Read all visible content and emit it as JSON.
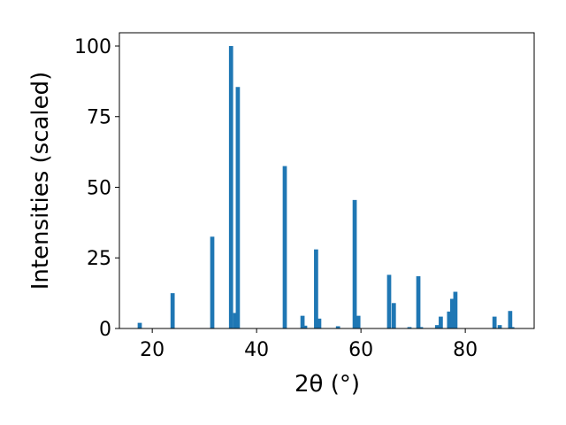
{
  "chart_data": {
    "type": "bar",
    "xlabel": "2θ (°)",
    "ylabel": "Intensities (scaled)",
    "x": [
      17.6,
      23.9,
      31.5,
      35.1,
      35.9,
      36.4,
      45.4,
      48.8,
      49.3,
      51.4,
      52.0,
      55.6,
      58.8,
      59.5,
      65.4,
      66.3,
      69.3,
      71.0,
      71.5,
      74.6,
      75.3,
      76.9,
      77.5,
      78.1,
      85.6,
      86.6,
      88.6,
      89.0
    ],
    "values": [
      2,
      12.5,
      32.5,
      100,
      5.5,
      85.5,
      57.5,
      4.5,
      1,
      28,
      3.5,
      0.8,
      45.5,
      4.5,
      19,
      9,
      0.5,
      18.5,
      0.5,
      1.2,
      4.2,
      6,
      10.5,
      13,
      4.2,
      1.2,
      6.2,
      0.5
    ],
    "color": "#1f77b4",
    "xlim": [
      13.7,
      93.2
    ],
    "ylim": [
      0,
      104.7
    ],
    "xticks": [
      20,
      40,
      60,
      80
    ],
    "yticks": [
      0,
      25,
      50,
      75,
      100
    ]
  }
}
